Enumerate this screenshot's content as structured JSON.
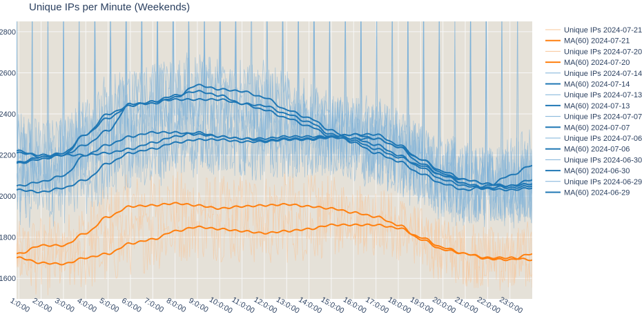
{
  "chart_data": {
    "type": "line",
    "title": "Unique IPs per Minute (Weekends)",
    "xlabel": "",
    "ylabel": "",
    "ylim": [
      1500,
      2850
    ],
    "y_ticks": [
      "1600",
      "1800",
      "2000",
      "2200",
      "2400",
      "2600",
      "2800"
    ],
    "y_tick_values": [
      1600,
      1800,
      2000,
      2200,
      2400,
      2600,
      2800
    ],
    "x_ticks": [
      "1:0:00",
      "2:0:00",
      "3:0:00",
      "4:0:00",
      "5:0:00",
      "6:0:00",
      "7:0:00",
      "8:0:00",
      "9:0:00",
      "10:0:00",
      "11:0:00",
      "12:0:00",
      "13:0:00",
      "14:0:00",
      "15:0:00",
      "16:0:00",
      "17:0:00",
      "18:0:00",
      "19:0:00",
      "20:0:00",
      "21:0:00",
      "22:0:00",
      "23:0:00"
    ],
    "x_tick_hours": [
      1,
      2,
      3,
      4,
      5,
      6,
      7,
      8,
      9,
      10,
      11,
      12,
      13,
      14,
      15,
      16,
      17,
      18,
      19,
      20,
      21,
      22,
      23
    ],
    "x_range_hours": [
      0.9,
      24.0
    ],
    "legend_position": "right",
    "colors": {
      "orange_line": "#ff7f0e",
      "orange_raw": "#f9c597",
      "blue_line": "#1f77b4",
      "blue_raw": "#7bb0d8",
      "plot_bg": "#e5e1d8",
      "grid": "#f7f7f7",
      "text": "#2a3f5f"
    },
    "ma_hours": [
      1,
      2,
      3,
      4,
      5,
      6,
      7,
      8,
      9,
      10,
      11,
      12,
      13,
      14,
      15,
      16,
      17,
      18,
      19,
      20,
      21,
      22,
      23,
      24
    ],
    "series": [
      {
        "name": "Unique IPs 2024-07-21",
        "kind": "raw",
        "color": "orange",
        "base": "MA(60) 2024-07-21",
        "noise": 160
      },
      {
        "name": "MA(60) 2024-07-21",
        "kind": "ma",
        "color": "orange",
        "values": [
          1720,
          1760,
          1760,
          1820,
          1900,
          1950,
          1955,
          1965,
          1955,
          1940,
          1950,
          1955,
          1960,
          1950,
          1940,
          1920,
          1900,
          1860,
          1790,
          1740,
          1720,
          1695,
          1690,
          1720
        ]
      },
      {
        "name": "Unique IPs 2024-07-20",
        "kind": "raw",
        "color": "orange",
        "base": "MA(60) 2024-07-20",
        "noise": 160
      },
      {
        "name": "MA(60) 2024-07-20",
        "kind": "ma",
        "color": "orange",
        "values": [
          1700,
          1675,
          1670,
          1700,
          1720,
          1770,
          1790,
          1830,
          1850,
          1840,
          1830,
          1820,
          1830,
          1840,
          1860,
          1860,
          1860,
          1845,
          1800,
          1750,
          1720,
          1700,
          1700,
          1690
        ]
      },
      {
        "name": "Unique IPs 2024-07-14",
        "kind": "raw",
        "color": "blue",
        "base": "MA(60) 2024-07-14",
        "noise": 190
      },
      {
        "name": "MA(60) 2024-07-14",
        "kind": "ma",
        "color": "blue",
        "values": [
          2210,
          2200,
          2200,
          2300,
          2380,
          2440,
          2460,
          2470,
          2470,
          2470,
          2450,
          2420,
          2380,
          2340,
          2290,
          2270,
          2230,
          2190,
          2150,
          2100,
          2060,
          2040,
          2050,
          2060
        ]
      },
      {
        "name": "Unique IPs 2024-07-13",
        "kind": "raw",
        "color": "blue",
        "base": "MA(60) 2024-07-13",
        "noise": 190
      },
      {
        "name": "MA(60) 2024-07-13",
        "kind": "ma",
        "color": "blue",
        "values": [
          2165,
          2190,
          2200,
          2250,
          2320,
          2450,
          2450,
          2480,
          2540,
          2520,
          2510,
          2480,
          2420,
          2380,
          2320,
          2260,
          2210,
          2170,
          2110,
          2060,
          2030,
          2050,
          2100,
          2150
        ]
      },
      {
        "name": "Unique IPs 2024-07-07",
        "kind": "raw",
        "color": "blue",
        "base": "MA(60) 2024-07-07",
        "noise": 190
      },
      {
        "name": "MA(60) 2024-07-07",
        "kind": "ma",
        "color": "blue",
        "values": [
          2050,
          2070,
          2100,
          2200,
          2250,
          2290,
          2310,
          2310,
          2300,
          2290,
          2280,
          2280,
          2290,
          2290,
          2290,
          2300,
          2300,
          2250,
          2180,
          2110,
          2060,
          2040,
          2050,
          2080
        ]
      },
      {
        "name": "Unique IPs 2024-07-06",
        "kind": "raw",
        "color": "blue",
        "base": "MA(60) 2024-07-06",
        "noise": 190
      },
      {
        "name": "MA(60) 2024-07-06",
        "kind": "ma",
        "color": "blue",
        "values": [
          2220,
          2190,
          2210,
          2300,
          2400,
          2440,
          2460,
          2490,
          2510,
          2490,
          2450,
          2440,
          2400,
          2360,
          2300,
          2280,
          2280,
          2240,
          2160,
          2100,
          2080,
          2060,
          2050,
          2060
        ]
      },
      {
        "name": "Unique IPs 2024-06-30",
        "kind": "raw",
        "color": "blue",
        "base": "MA(60) 2024-06-30",
        "noise": 190
      },
      {
        "name": "MA(60) 2024-06-30",
        "kind": "ma",
        "color": "blue",
        "values": [
          2030,
          2020,
          2040,
          2080,
          2160,
          2210,
          2230,
          2260,
          2275,
          2275,
          2265,
          2265,
          2275,
          2275,
          2285,
          2280,
          2250,
          2200,
          2140,
          2080,
          2050,
          2035,
          2030,
          2040
        ]
      },
      {
        "name": "Unique IPs 2024-06-29",
        "kind": "raw",
        "color": "blue",
        "base": "MA(60) 2024-06-29",
        "noise": 190
      },
      {
        "name": "MA(60) 2024-06-29",
        "kind": "ma",
        "color": "blue",
        "values": [
          2160,
          2180,
          2200,
          2200,
          2210,
          2230,
          2260,
          2290,
          2310,
          2290,
          2280,
          2270,
          2280,
          2280,
          2290,
          2300,
          2280,
          2240,
          2180,
          2120,
          2080,
          2060,
          2040,
          2050
        ]
      }
    ]
  }
}
